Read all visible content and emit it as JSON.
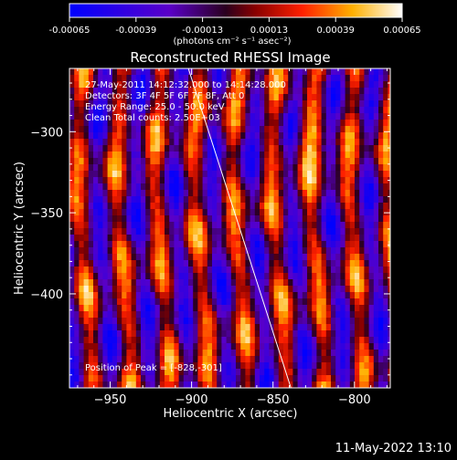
{
  "colorbar": {
    "tick_labels": [
      "-0.00065",
      "-0.00039",
      "-0.00013",
      "0.00013",
      "0.00039",
      "0.00065"
    ],
    "tick_values": [
      -0.00065,
      -0.00039,
      -0.00013,
      0.00013,
      0.00039,
      0.00065
    ],
    "units": "(photons cm⁻² s⁻¹ asec⁻²)"
  },
  "chart_data": {
    "type": "heatmap",
    "title": "Reconstructed RHESSI Image",
    "xlabel": "Heliocentric X (arcsec)",
    "ylabel": "Heliocentric Y (arcsec)",
    "xlim": [
      -975,
      -778
    ],
    "ylim": [
      -458,
      -261
    ],
    "x_ticks": [
      -950,
      -900,
      -850,
      -800
    ],
    "y_ticks": [
      -300,
      -350,
      -400
    ],
    "x_tick_labels": [
      "−950",
      "−900",
      "−850",
      "−800"
    ],
    "y_tick_labels": [
      "−300",
      "−350",
      "−400"
    ],
    "value_range": [
      -0.00065,
      0.00065
    ],
    "annotations": [
      "27-May-2011 14:12:32.000 to 14:14:28.000",
      "Detectors: 3F 4F 5F 6F 7F 8F, Att 0",
      "Energy Range: 25.0 - 50.0 keV",
      "Clean     Total counts: 2.50E+03"
    ],
    "peak_label": "Position of Peak = [-828,-301]",
    "peak_position": [
      -828,
      -301
    ],
    "limb_curve_points": [
      [
        -902,
        -261
      ],
      [
        -870,
        -360
      ],
      [
        -839,
        -458
      ]
    ]
  },
  "footer": {
    "timestamp": "11-May-2022 13:10"
  },
  "colors": {
    "background": "#000000",
    "foreground": "#ffffff"
  }
}
